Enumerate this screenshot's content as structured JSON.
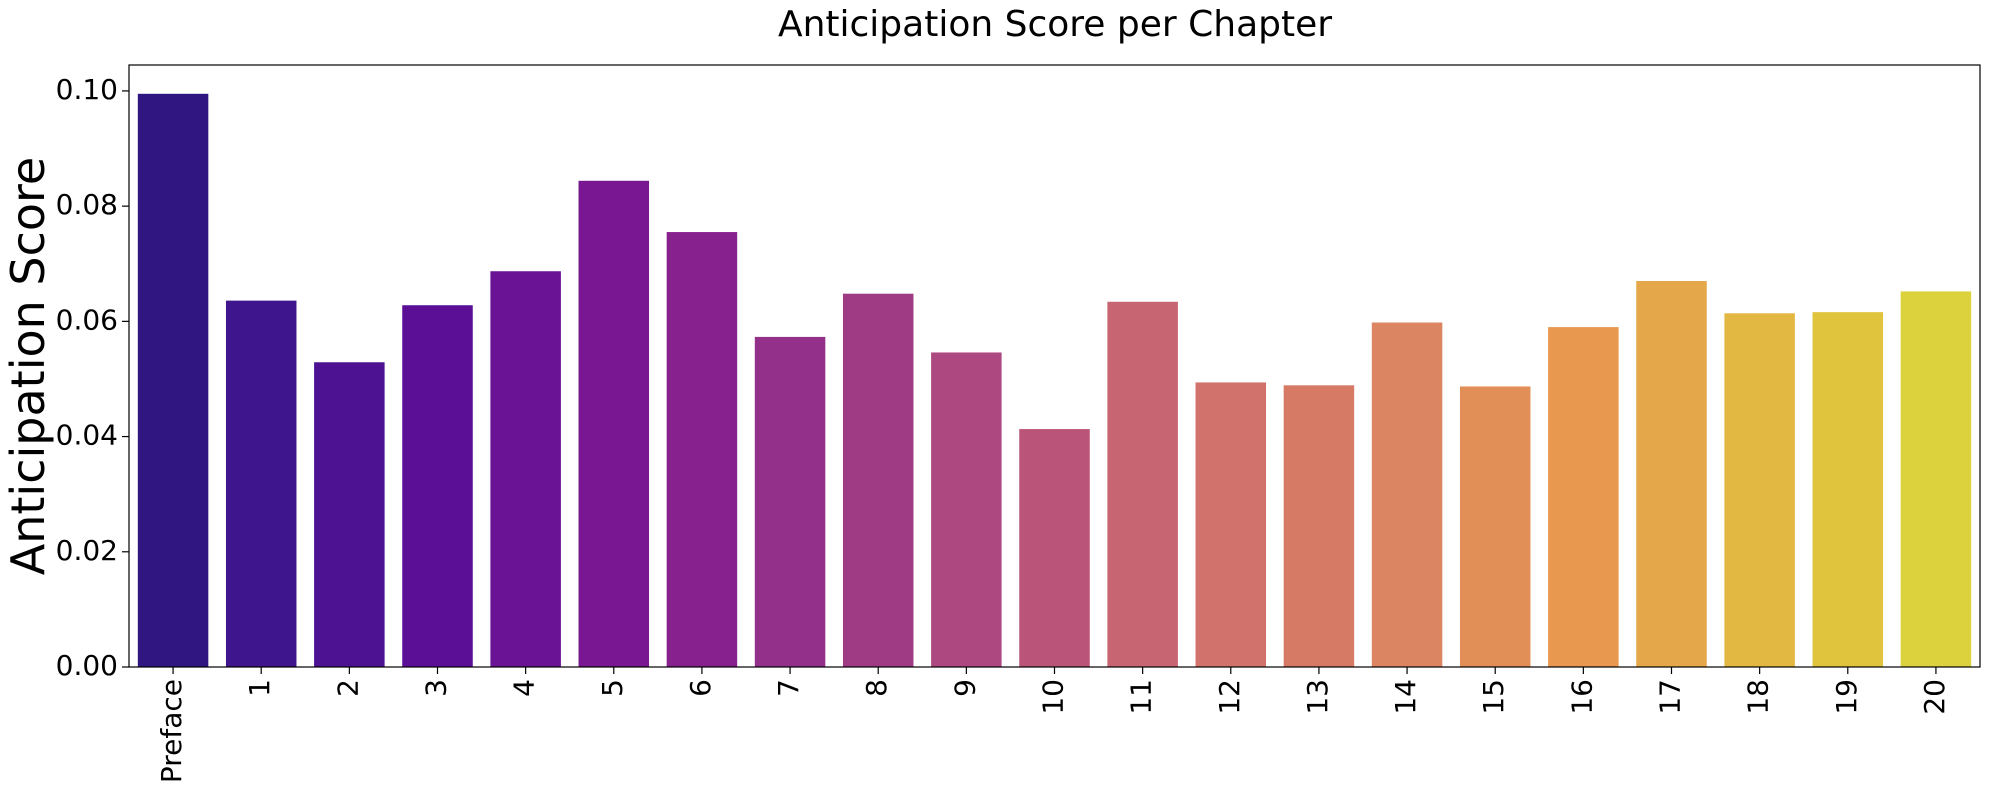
{
  "chart_data": {
    "type": "bar",
    "title": "Anticipation Score per Chapter",
    "xlabel": "",
    "ylabel": "Anticipation Score",
    "categories": [
      "Preface",
      "1",
      "2",
      "3",
      "4",
      "5",
      "6",
      "7",
      "8",
      "9",
      "10",
      "11",
      "12",
      "13",
      "14",
      "15",
      "16",
      "17",
      "18",
      "19",
      "20"
    ],
    "values": [
      0.0995,
      0.0636,
      0.0529,
      0.0628,
      0.0687,
      0.0844,
      0.0755,
      0.0573,
      0.0648,
      0.0546,
      0.0413,
      0.0634,
      0.0494,
      0.0489,
      0.0598,
      0.0487,
      0.059,
      0.067,
      0.0614,
      0.0616,
      0.0652
    ],
    "colors": [
      "#2f1680",
      "#3e158d",
      "#4c1291",
      "#5b0f96",
      "#6a1495",
      "#781791",
      "#87218e",
      "#93318a",
      "#9f3b85",
      "#ad4980",
      "#bb5479",
      "#c76572",
      "#d1726c",
      "#d67a66",
      "#dc8563",
      "#e28e57",
      "#e8984f",
      "#e4a749",
      "#e2b843",
      "#e0c43e",
      "#dbd23d"
    ],
    "yticks": [
      "0.00",
      "0.02",
      "0.04",
      "0.06",
      "0.08",
      "0.10"
    ],
    "ylim": [
      0,
      0.1045
    ],
    "grid": false,
    "legend": "none"
  }
}
